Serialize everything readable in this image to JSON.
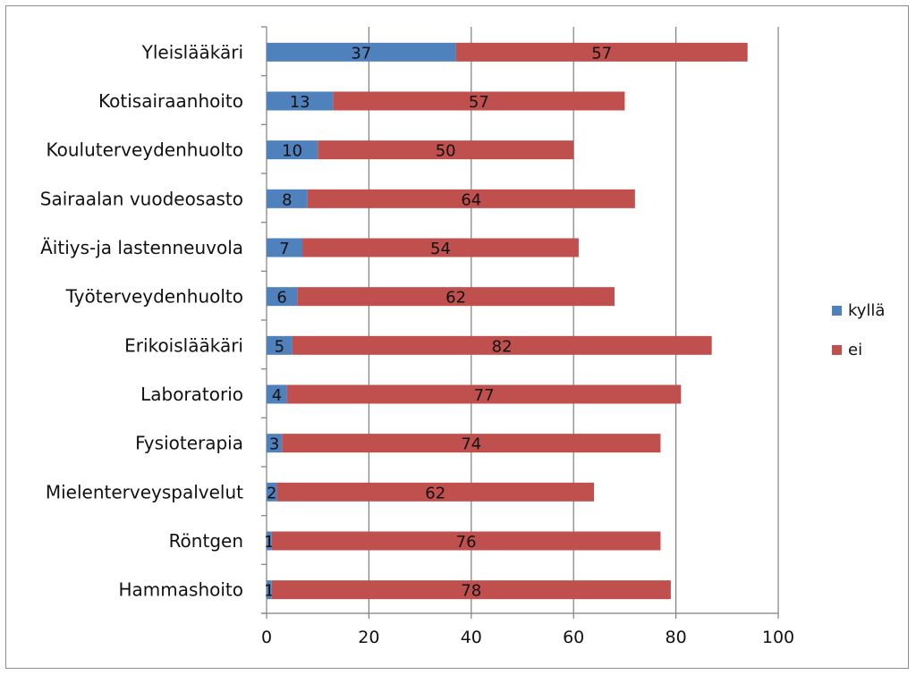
{
  "chart_data": {
    "type": "bar",
    "orientation": "horizontal",
    "stacked": true,
    "categories": [
      "Yleislääkäri",
      "Kotisairaanhoito",
      "Kouluterveydenhuolto",
      "Sairaalan vuodeosasto",
      "Äitiys-ja lastenneuvola",
      "Työterveydenhuolto",
      "Erikoislääkäri",
      "Laboratorio",
      "Fysioterapia",
      "Mielenterveyspalvelut",
      "Röntgen",
      "Hammashoito"
    ],
    "series": [
      {
        "name": "kyllä",
        "color": "#4f81bd",
        "values": [
          37,
          13,
          10,
          8,
          7,
          6,
          5,
          4,
          3,
          2,
          1,
          1
        ]
      },
      {
        "name": "ei",
        "color": "#c0504d",
        "values": [
          57,
          57,
          50,
          64,
          54,
          62,
          82,
          77,
          74,
          62,
          76,
          78
        ]
      }
    ],
    "xlim": [
      0,
      100
    ],
    "xticks": [
      0,
      20,
      40,
      60,
      80,
      100
    ],
    "xtick_labels": [
      "0",
      "20",
      "40",
      "60",
      "80",
      "100"
    ],
    "grid": "vertical",
    "legend_position": "right",
    "title": "",
    "xlabel": "",
    "ylabel": ""
  }
}
